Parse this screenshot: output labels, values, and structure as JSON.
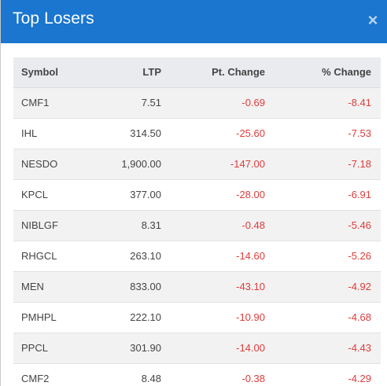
{
  "modal": {
    "title": "Top Losers",
    "close_label": "×"
  },
  "table": {
    "columns": [
      "Symbol",
      "LTP",
      "Pt. Change",
      "% Change"
    ],
    "rows": [
      {
        "symbol": "CMF1",
        "ltp": "7.51",
        "pt_change": "-0.69",
        "pct_change": "-8.41"
      },
      {
        "symbol": "IHL",
        "ltp": "314.50",
        "pt_change": "-25.60",
        "pct_change": "-7.53"
      },
      {
        "symbol": "NESDO",
        "ltp": "1,900.00",
        "pt_change": "-147.00",
        "pct_change": "-7.18"
      },
      {
        "symbol": "KPCL",
        "ltp": "377.00",
        "pt_change": "-28.00",
        "pct_change": "-6.91"
      },
      {
        "symbol": "NIBLGF",
        "ltp": "8.31",
        "pt_change": "-0.48",
        "pct_change": "-5.46"
      },
      {
        "symbol": "RHGCL",
        "ltp": "263.10",
        "pt_change": "-14.60",
        "pct_change": "-5.26"
      },
      {
        "symbol": "MEN",
        "ltp": "833.00",
        "pt_change": "-43.10",
        "pct_change": "-4.92"
      },
      {
        "symbol": "PMHPL",
        "ltp": "222.10",
        "pt_change": "-10.90",
        "pct_change": "-4.68"
      },
      {
        "symbol": "PPCL",
        "ltp": "301.90",
        "pt_change": "-14.00",
        "pct_change": "-4.43"
      },
      {
        "symbol": "CMF2",
        "ltp": "8.48",
        "pt_change": "-0.38",
        "pct_change": "-4.29"
      }
    ]
  },
  "colors": {
    "header_bg": "#1a76cf",
    "negative": "#e03b3b",
    "row_stripe": "#f2f2f2",
    "table_header_bg": "#e9ebee"
  }
}
